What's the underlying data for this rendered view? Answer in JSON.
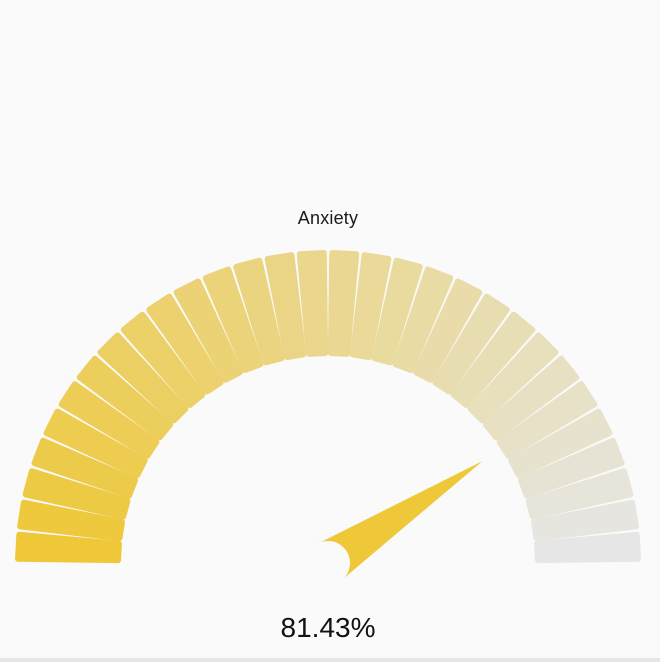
{
  "gauge": {
    "title": "Anxiety",
    "value_label": "81.43%",
    "value": 81.43,
    "min": 0,
    "max": 100,
    "segments": 30,
    "colors": {
      "active": "#eec838",
      "inactive": "#e6e6e6",
      "needle": "#eec838"
    }
  }
}
